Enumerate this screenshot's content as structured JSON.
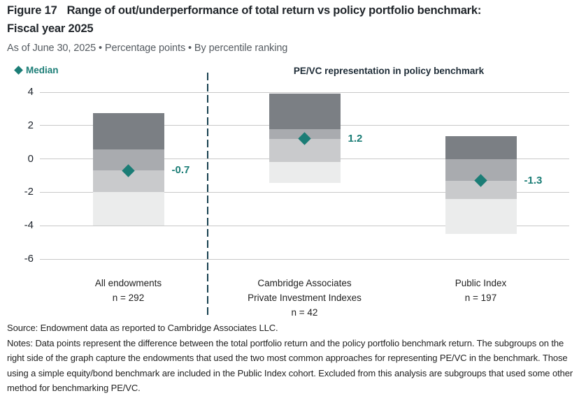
{
  "header": {
    "figure_label": "Figure 17",
    "title": "Range of out/underperformance of total return vs policy portfolio benchmark:",
    "title_line2": "Fiscal year 2025",
    "subtitle": "As of June 30, 2025 • Percentage points • By percentile ranking"
  },
  "legend": {
    "icon": "diamond-icon",
    "label": "Median"
  },
  "right_panel_header": "PE/VC representation in policy benchmark",
  "chart_data": {
    "type": "bar",
    "subtype": "percentile-range-stacked-bars",
    "title": "Range of out/underperformance of total return vs policy portfolio benchmark: Fiscal year 2025",
    "unit": "percentage points",
    "ylim": [
      -6.5,
      4.5
    ],
    "yticks": [
      4,
      2,
      0,
      -2,
      -4,
      -6
    ],
    "grid": true,
    "legend_position": "top-left",
    "groups": [
      {
        "label_lines": [
          "All endowments",
          "n = 292"
        ],
        "percentiles": {
          "p5": -4.0,
          "p25": -2.0,
          "median": -0.7,
          "p75": 0.55,
          "p95": 2.75
        },
        "median_label": "-0.7"
      },
      {
        "label_lines": [
          "Cambridge Associates",
          "Private Investment Indexes",
          "n = 42"
        ],
        "percentiles": {
          "p5": -1.45,
          "p25": -0.2,
          "median": 1.2,
          "p75": 1.8,
          "p95": 3.9
        },
        "median_label": "1.2"
      },
      {
        "label_lines": [
          "Public Index",
          "n = 197"
        ],
        "percentiles": {
          "p5": -4.5,
          "p25": -2.4,
          "median": -1.3,
          "p75": 0.0,
          "p95": 1.35
        },
        "median_label": "-1.3"
      }
    ],
    "colors": {
      "segment_p75_p95": "#7b7f84",
      "segment_median_p75": "#a9abaf",
      "segment_p25_median": "#c9cacc",
      "segment_p5_p25": "#ebecec",
      "median_marker": "#1b7d76",
      "gridline": "#c8c8c8",
      "divider": "#17404f"
    }
  },
  "footer": {
    "source": "Source: Endowment data as reported to Cambridge Associates LLC.",
    "notes": "Notes: Data points represent the difference between the total portfolio return and the policy portfolio benchmark return. The subgroups on the right side of the graph capture the endowments that used the two most common approaches for representing PE/VC in the benchmark. Those using a simple equity/bond benchmark are included in the Public Index cohort. Excluded from this analysis are subgroups that used some other method for benchmarking PE/VC."
  }
}
